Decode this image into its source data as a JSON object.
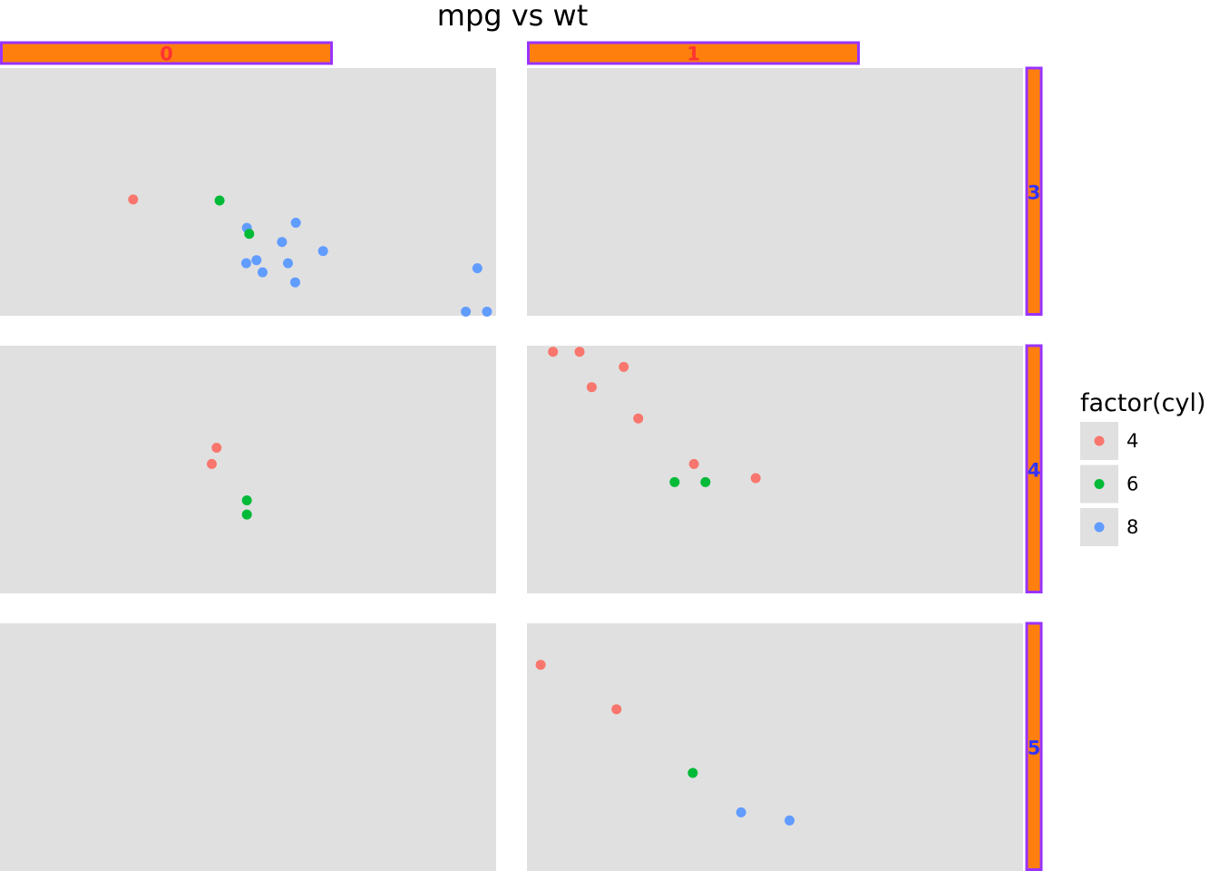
{
  "chart_data": {
    "type": "scatter",
    "title": "mpg vs wt",
    "x_variable": "wt",
    "y_variable": "mpg",
    "xlim": [
      1.4,
      5.5
    ],
    "ylim": [
      10,
      34.5
    ],
    "col_facets": [
      "0",
      "1"
    ],
    "row_facets": [
      "3",
      "4",
      "5"
    ],
    "legend": {
      "title": "factor(cyl)",
      "position": "right",
      "entries": [
        {
          "label": "4",
          "color": "#F8766D"
        },
        {
          "label": "6",
          "color": "#00BA38"
        },
        {
          "label": "8",
          "color": "#619CFF"
        }
      ]
    },
    "theme": {
      "panel_background": "#E0E0E0",
      "strip_fill": "#FF7F0E",
      "strip_border": "#9933FF",
      "col_strip_text": "#FF3333",
      "row_strip_text": "#3333FF",
      "grid": false
    },
    "panels": [
      {
        "col": "0",
        "row": "3",
        "points": [
          {
            "x": 2.5,
            "y": 21.5,
            "cyl": "4"
          },
          {
            "x": 3.215,
            "y": 21.4,
            "cyl": "6"
          },
          {
            "x": 3.44,
            "y": 18.7,
            "cyl": "8"
          },
          {
            "x": 3.46,
            "y": 18.1,
            "cyl": "6"
          },
          {
            "x": 3.57,
            "y": 14.3,
            "cyl": "8"
          },
          {
            "x": 3.73,
            "y": 17.3,
            "cyl": "8"
          },
          {
            "x": 3.78,
            "y": 15.2,
            "cyl": "8"
          },
          {
            "x": 4.07,
            "y": 16.4,
            "cyl": "8"
          },
          {
            "x": 3.84,
            "y": 13.3,
            "cyl": "8"
          },
          {
            "x": 3.845,
            "y": 19.2,
            "cyl": "8"
          },
          {
            "x": 3.52,
            "y": 15.5,
            "cyl": "8"
          },
          {
            "x": 3.435,
            "y": 15.2,
            "cyl": "8"
          },
          {
            "x": 5.25,
            "y": 10.4,
            "cyl": "8"
          },
          {
            "x": 5.424,
            "y": 10.4,
            "cyl": "8"
          },
          {
            "x": 5.345,
            "y": 14.7,
            "cyl": "8"
          }
        ]
      },
      {
        "col": "1",
        "row": "3",
        "points": []
      },
      {
        "col": "0",
        "row": "4",
        "points": [
          {
            "x": 3.19,
            "y": 24.4,
            "cyl": "4"
          },
          {
            "x": 3.15,
            "y": 22.8,
            "cyl": "4"
          },
          {
            "x": 3.44,
            "y": 19.2,
            "cyl": "6"
          },
          {
            "x": 3.44,
            "y": 17.8,
            "cyl": "6"
          }
        ]
      },
      {
        "col": "1",
        "row": "4",
        "points": [
          {
            "x": 1.615,
            "y": 33.9,
            "cyl": "4"
          },
          {
            "x": 1.835,
            "y": 33.9,
            "cyl": "4"
          },
          {
            "x": 2.2,
            "y": 32.4,
            "cyl": "4"
          },
          {
            "x": 1.935,
            "y": 30.4,
            "cyl": "4"
          },
          {
            "x": 2.32,
            "y": 27.3,
            "cyl": "4"
          },
          {
            "x": 2.78,
            "y": 22.8,
            "cyl": "4"
          },
          {
            "x": 2.62,
            "y": 21.0,
            "cyl": "6"
          },
          {
            "x": 2.875,
            "y": 21.0,
            "cyl": "6"
          },
          {
            "x": 3.29,
            "y": 21.4,
            "cyl": "4"
          }
        ]
      },
      {
        "col": "0",
        "row": "5",
        "points": []
      },
      {
        "col": "1",
        "row": "5",
        "points": [
          {
            "x": 1.513,
            "y": 30.4,
            "cyl": "4"
          },
          {
            "x": 2.14,
            "y": 26.0,
            "cyl": "4"
          },
          {
            "x": 2.77,
            "y": 19.7,
            "cyl": "6"
          },
          {
            "x": 3.17,
            "y": 15.8,
            "cyl": "8"
          },
          {
            "x": 3.57,
            "y": 15.0,
            "cyl": "8"
          }
        ]
      }
    ]
  }
}
